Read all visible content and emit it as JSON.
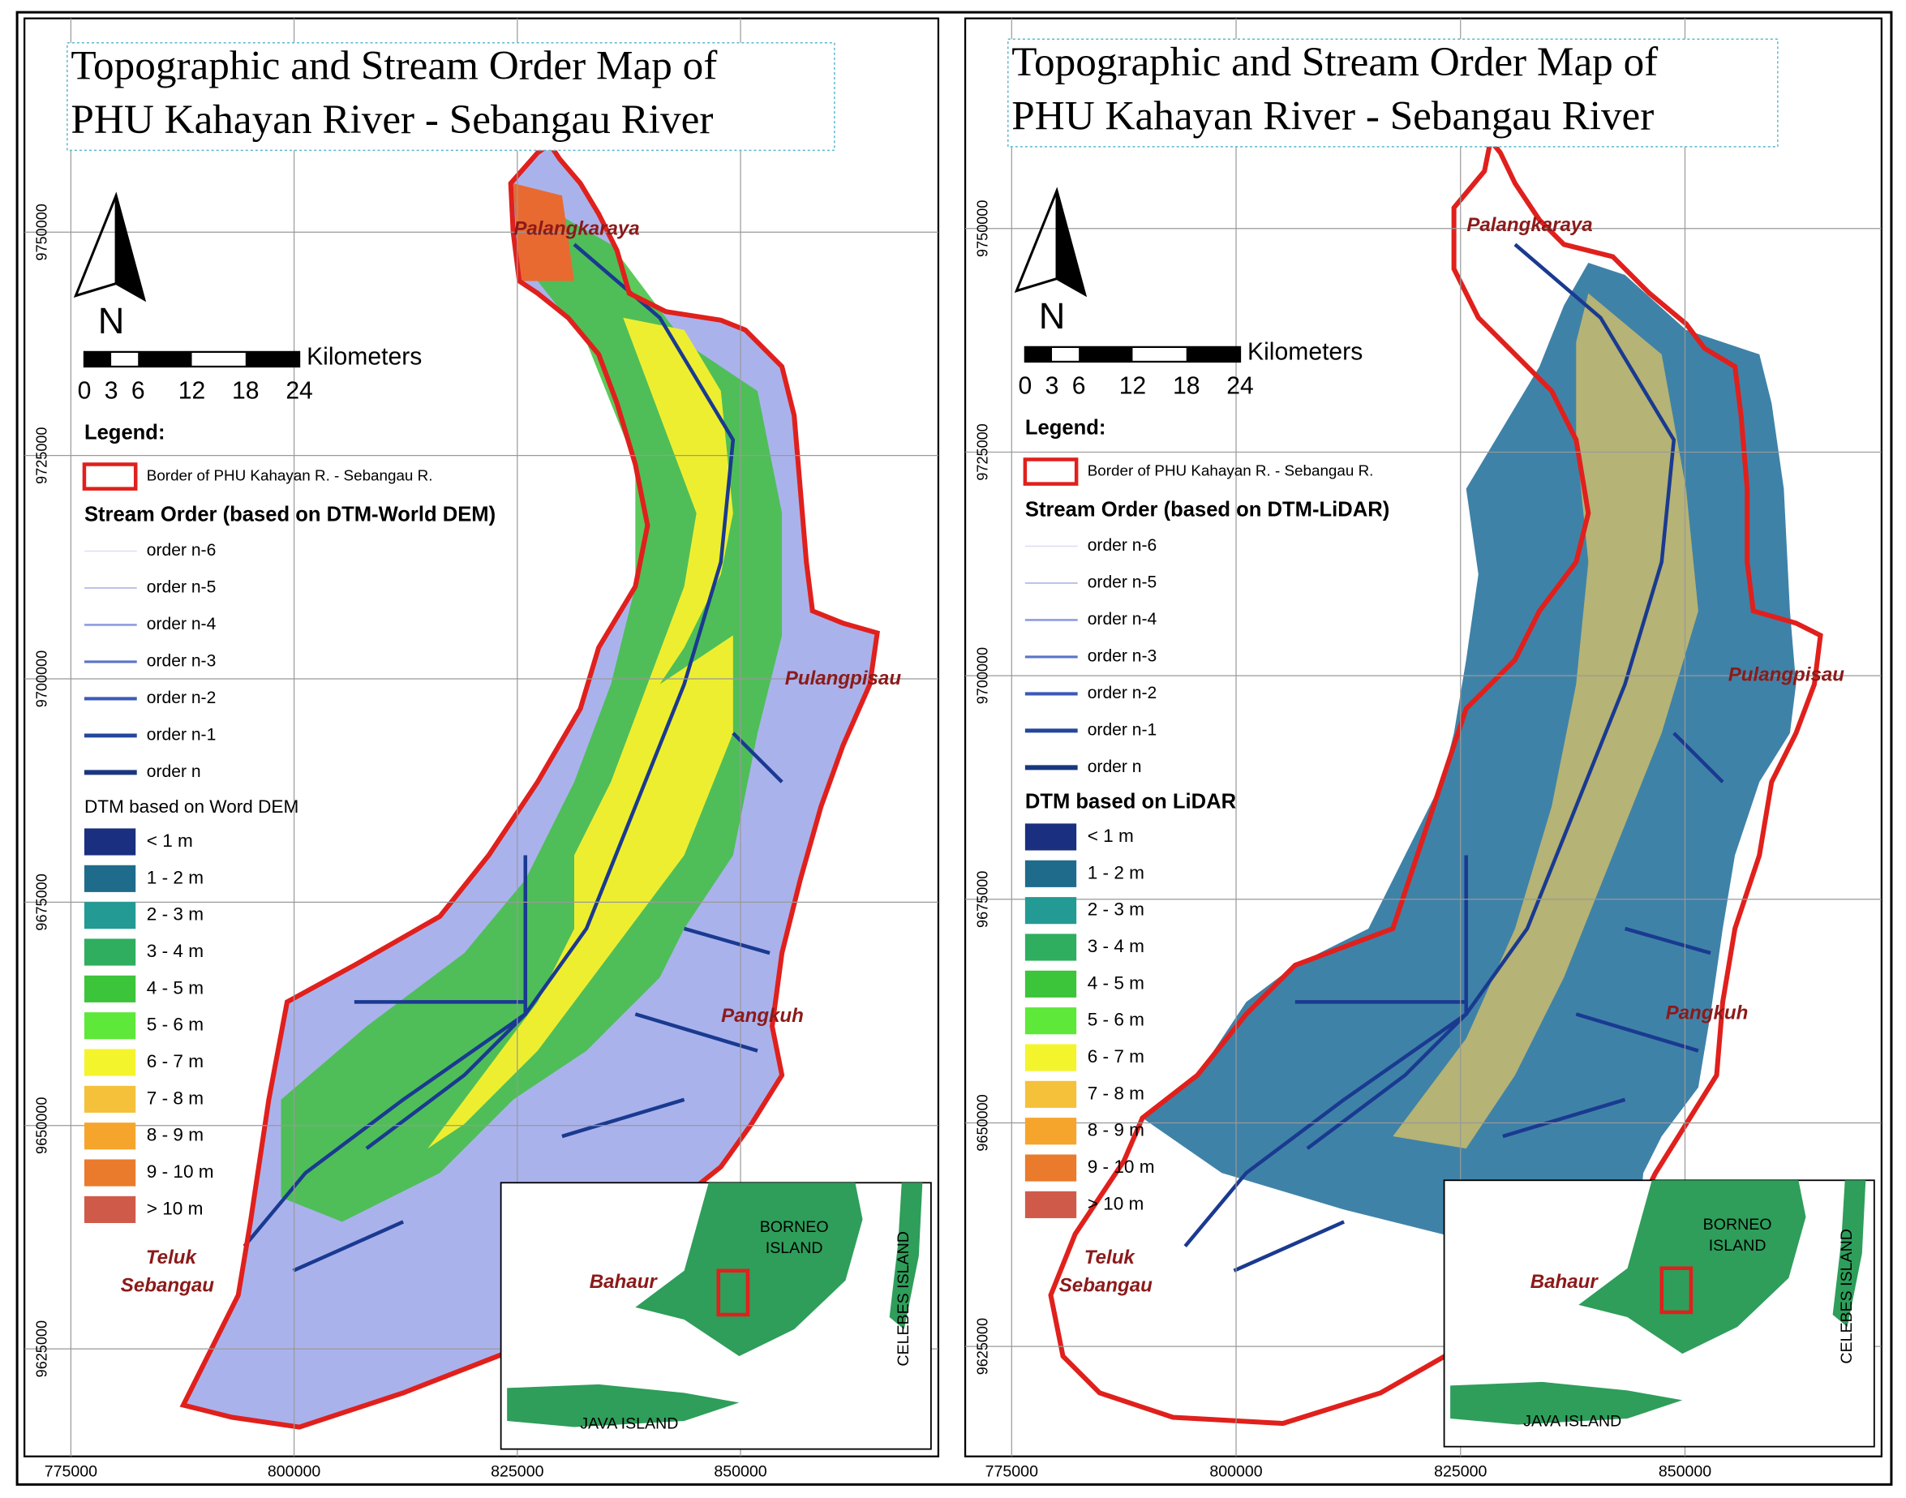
{
  "panels": [
    {
      "title_lines": [
        "Topographic and Stream Order Map of",
        "PHU Kahayan River - Sebangau River"
      ],
      "north": "N",
      "scale_unit": "Kilometers",
      "scale_labels": [
        0,
        3,
        6,
        12,
        18,
        24
      ],
      "legend_title": "Legend:",
      "border_label": "Border of PHU Kahayan R. - Sebangau R.",
      "stream_title": "Stream Order (based on DTM-World DEM)",
      "stream_orders": [
        "order n-6",
        "order n-5",
        "order n-4",
        "order n-3",
        "order n-2",
        "order n-1",
        "order n"
      ],
      "dtm_title": "DTM based on Word DEM",
      "dtm_classes": [
        {
          "label": "< 1 m",
          "color": "#1b2f80"
        },
        {
          "label": "1 - 2 m",
          "color": "#1e6b8c"
        },
        {
          "label": "2 - 3 m",
          "color": "#239a94"
        },
        {
          "label": "3 - 4 m",
          "color": "#2eae5e"
        },
        {
          "label": "4 - 5 m",
          "color": "#3cc43a"
        },
        {
          "label": "5 - 6 m",
          "color": "#5ee83a"
        },
        {
          "label": "6 - 7 m",
          "color": "#f4f42c"
        },
        {
          "label": "7 - 8 m",
          "color": "#f5c13a"
        },
        {
          "label": "8 - 9 m",
          "color": "#f6a52c"
        },
        {
          "label": "9 - 10 m",
          "color": "#ea7b2c"
        },
        {
          "label": "> 10 m",
          "color": "#d05a4a"
        }
      ],
      "places": [
        "Palangkaraya",
        "Pulangpisau",
        "Pangkuh",
        "Teluk",
        "Sebangau",
        "Bahaur"
      ],
      "x_ticks": [
        775000,
        800000,
        825000,
        850000
      ],
      "y_ticks": [
        9750000,
        9725000,
        9700000,
        9675000,
        9650000,
        9625000
      ],
      "inset_labels": [
        "BORNEO",
        "ISLAND",
        "CELEBES ISLAND",
        "JAVA ISLAND"
      ]
    },
    {
      "title_lines": [
        "Topographic and Stream Order Map of",
        "PHU Kahayan River - Sebangau River"
      ],
      "north": "N",
      "scale_unit": "Kilometers",
      "scale_labels": [
        0,
        3,
        6,
        12,
        18,
        24
      ],
      "legend_title": "Legend:",
      "border_label": "Border of PHU Kahayan R. - Sebangau R.",
      "stream_title": "Stream Order (based on DTM-LiDAR)",
      "stream_orders": [
        "order n-6",
        "order n-5",
        "order n-4",
        "order n-3",
        "order n-2",
        "order n-1",
        "order n"
      ],
      "dtm_title": "DTM based on LiDAR",
      "dtm_classes": [
        {
          "label": "< 1 m",
          "color": "#1b2f80"
        },
        {
          "label": "1 - 2 m",
          "color": "#1e6b8c"
        },
        {
          "label": "2 - 3 m",
          "color": "#239a94"
        },
        {
          "label": "3 - 4 m",
          "color": "#2eae5e"
        },
        {
          "label": "4 - 5 m",
          "color": "#3cc43a"
        },
        {
          "label": "5 - 6 m",
          "color": "#5ee83a"
        },
        {
          "label": "6 - 7 m",
          "color": "#f4f42c"
        },
        {
          "label": "7 - 8 m",
          "color": "#f5c13a"
        },
        {
          "label": "8 - 9 m",
          "color": "#f6a52c"
        },
        {
          "label": "9 - 10 m",
          "color": "#ea7b2c"
        },
        {
          "label": "> 10 m",
          "color": "#d05a4a"
        }
      ],
      "places": [
        "Palangkaraya",
        "Pulangpisau",
        "Pangkuh",
        "Teluk",
        "Sebangau",
        "Bahaur"
      ],
      "x_ticks": [
        775000,
        800000,
        825000,
        850000
      ],
      "y_ticks": [
        9750000,
        9725000,
        9700000,
        9675000,
        9650000,
        9625000
      ],
      "inset_labels": [
        "BORNEO",
        "ISLAND",
        "CELEBES ISLAND",
        "JAVA ISLAND"
      ]
    }
  ]
}
